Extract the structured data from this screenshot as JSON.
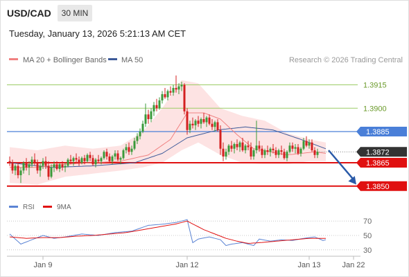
{
  "header": {
    "symbol": "USD/CAD",
    "timeframe": "30 MIN",
    "datetime": "Tuesday, January 13, 2026 5:21:13 AM CET"
  },
  "legend": {
    "ma20_label": "MA 20 + Bollinger Bands",
    "ma50_label": "MA 50",
    "credit": "Research © 2026 Trading Central"
  },
  "rsi_legend": {
    "rsi_label": "RSI",
    "ma9_label": "9MA"
  },
  "colors": {
    "bull": "#3a9a3a",
    "bear": "#d42020",
    "ma20": "#f08080",
    "ma50": "#3c5a99",
    "bands_fill": "#fde0e0",
    "resistance": "#9ccc65",
    "pivot": "#4a7fd8",
    "support": "#e01010",
    "last": "#333333",
    "arrow": "#2a5aa8",
    "rsi": "#5b84d4"
  },
  "chart_data": [
    {
      "type": "candlestick",
      "title": "USD/CAD",
      "timeframe": "30 MIN",
      "ylim": [
        1.3845,
        1.3925
      ],
      "x_ticks": [
        {
          "label": "Jan 9",
          "index": 12
        },
        {
          "label": "Jan 12",
          "index": 64
        },
        {
          "label": "Jan 13",
          "index": 108
        },
        {
          "label": "Jan 22",
          "index": 124
        }
      ],
      "levels": [
        {
          "label": "1.3915",
          "value": 1.3915,
          "kind": "resistance"
        },
        {
          "label": "1.3900",
          "value": 1.39,
          "kind": "resistance"
        },
        {
          "label": "1.3885",
          "value": 1.3885,
          "kind": "pivot"
        },
        {
          "label": "1.3872",
          "value": 1.3872,
          "kind": "last"
        },
        {
          "label": "1.3865",
          "value": 1.3865,
          "kind": "support"
        },
        {
          "label": "1.3850",
          "value": 1.385,
          "kind": "support"
        }
      ],
      "forecast_arrow": {
        "from_index": 115,
        "from": 1.3873,
        "to_index": 125,
        "to": 1.3851
      },
      "ma20_anchors": [
        [
          0,
          1.3862
        ],
        [
          10,
          1.3862
        ],
        [
          20,
          1.3864
        ],
        [
          30,
          1.3865
        ],
        [
          40,
          1.3866
        ],
        [
          50,
          1.387
        ],
        [
          58,
          1.388
        ],
        [
          64,
          1.3897
        ],
        [
          70,
          1.3897
        ],
        [
          76,
          1.3893
        ],
        [
          82,
          1.3883
        ],
        [
          88,
          1.3874
        ],
        [
          100,
          1.387
        ],
        [
          110,
          1.3872
        ],
        [
          114,
          1.3871
        ]
      ],
      "ma50_anchors": [
        [
          0,
          1.3865
        ],
        [
          15,
          1.3862
        ],
        [
          30,
          1.3863
        ],
        [
          45,
          1.3865
        ],
        [
          55,
          1.3871
        ],
        [
          64,
          1.3881
        ],
        [
          75,
          1.3886
        ],
        [
          85,
          1.3888
        ],
        [
          95,
          1.3886
        ],
        [
          105,
          1.388
        ],
        [
          114,
          1.3874
        ]
      ],
      "bb_upper_anchors": [
        [
          0,
          1.3875
        ],
        [
          10,
          1.3873
        ],
        [
          20,
          1.3876
        ],
        [
          30,
          1.3874
        ],
        [
          40,
          1.3876
        ],
        [
          48,
          1.3885
        ],
        [
          55,
          1.39
        ],
        [
          62,
          1.3918
        ],
        [
          68,
          1.3916
        ],
        [
          76,
          1.39
        ],
        [
          84,
          1.3895
        ],
        [
          92,
          1.3892
        ],
        [
          100,
          1.3884
        ],
        [
          108,
          1.388
        ],
        [
          114,
          1.3878
        ]
      ],
      "bb_lower_anchors": [
        [
          0,
          1.3852
        ],
        [
          10,
          1.3851
        ],
        [
          20,
          1.3856
        ],
        [
          30,
          1.3858
        ],
        [
          40,
          1.386
        ],
        [
          48,
          1.3862
        ],
        [
          55,
          1.3865
        ],
        [
          62,
          1.3873
        ],
        [
          68,
          1.3878
        ],
        [
          76,
          1.387
        ],
        [
          84,
          1.3865
        ],
        [
          92,
          1.3864
        ],
        [
          100,
          1.3864
        ],
        [
          108,
          1.3866
        ],
        [
          114,
          1.3866
        ]
      ],
      "candles": [
        [
          1.3866,
          1.3869,
          1.3863,
          1.3865
        ],
        [
          1.3865,
          1.3867,
          1.3858,
          1.386
        ],
        [
          1.386,
          1.3864,
          1.3857,
          1.3863
        ],
        [
          1.3863,
          1.3865,
          1.3855,
          1.3857
        ],
        [
          1.3857,
          1.3862,
          1.3852,
          1.386
        ],
        [
          1.386,
          1.3866,
          1.3858,
          1.3865
        ],
        [
          1.3865,
          1.3868,
          1.386,
          1.3862
        ],
        [
          1.3862,
          1.3866,
          1.3857,
          1.3864
        ],
        [
          1.3864,
          1.3869,
          1.3862,
          1.3867
        ],
        [
          1.3867,
          1.3871,
          1.3863,
          1.3865
        ],
        [
          1.3865,
          1.3867,
          1.3858,
          1.386
        ],
        [
          1.386,
          1.3865,
          1.3856,
          1.3863
        ],
        [
          1.3863,
          1.3868,
          1.3861,
          1.3866
        ],
        [
          1.3866,
          1.3869,
          1.3861,
          1.3863
        ],
        [
          1.3863,
          1.3866,
          1.3854,
          1.3856
        ],
        [
          1.3856,
          1.3864,
          1.3855,
          1.3862
        ],
        [
          1.3862,
          1.3866,
          1.3859,
          1.3864
        ],
        [
          1.3864,
          1.3866,
          1.386,
          1.3861
        ],
        [
          1.3861,
          1.3865,
          1.3859,
          1.3864
        ],
        [
          1.3864,
          1.3866,
          1.386,
          1.3862
        ],
        [
          1.3862,
          1.3865,
          1.3859,
          1.3863
        ],
        [
          1.3863,
          1.3868,
          1.3862,
          1.3867
        ],
        [
          1.3867,
          1.387,
          1.3864,
          1.3866
        ],
        [
          1.3866,
          1.3869,
          1.3863,
          1.3868
        ],
        [
          1.3868,
          1.3871,
          1.3865,
          1.3867
        ],
        [
          1.3867,
          1.3869,
          1.3863,
          1.3865
        ],
        [
          1.3865,
          1.3869,
          1.3864,
          1.3868
        ],
        [
          1.3868,
          1.387,
          1.3864,
          1.3866
        ],
        [
          1.3866,
          1.3871,
          1.3865,
          1.387
        ],
        [
          1.387,
          1.3872,
          1.3866,
          1.3868
        ],
        [
          1.3868,
          1.387,
          1.3863,
          1.3864
        ],
        [
          1.3864,
          1.3868,
          1.3862,
          1.3867
        ],
        [
          1.3867,
          1.387,
          1.3865,
          1.3866
        ],
        [
          1.3866,
          1.3869,
          1.3864,
          1.3868
        ],
        [
          1.3868,
          1.3873,
          1.3867,
          1.3872
        ],
        [
          1.3872,
          1.3874,
          1.3867,
          1.3869
        ],
        [
          1.3869,
          1.3871,
          1.3865,
          1.3866
        ],
        [
          1.3866,
          1.387,
          1.3864,
          1.3869
        ],
        [
          1.3869,
          1.3873,
          1.3867,
          1.3871
        ],
        [
          1.3871,
          1.3873,
          1.3866,
          1.3867
        ],
        [
          1.3867,
          1.3869,
          1.3864,
          1.3868
        ],
        [
          1.3868,
          1.3874,
          1.3867,
          1.3873
        ],
        [
          1.3873,
          1.3877,
          1.3871,
          1.3875
        ],
        [
          1.3875,
          1.3878,
          1.387,
          1.3872
        ],
        [
          1.3872,
          1.3876,
          1.387,
          1.3874
        ],
        [
          1.3874,
          1.3881,
          1.3873,
          1.3879
        ],
        [
          1.3879,
          1.3884,
          1.3877,
          1.3882
        ],
        [
          1.3882,
          1.3887,
          1.388,
          1.3885
        ],
        [
          1.3885,
          1.3892,
          1.3884,
          1.389
        ],
        [
          1.389,
          1.3903,
          1.3888,
          1.3896
        ],
        [
          1.3896,
          1.3899,
          1.389,
          1.3893
        ],
        [
          1.3893,
          1.39,
          1.3891,
          1.3898
        ],
        [
          1.3898,
          1.3904,
          1.3895,
          1.3902
        ],
        [
          1.3902,
          1.3906,
          1.3898,
          1.39
        ],
        [
          1.39,
          1.3907,
          1.3899,
          1.3905
        ],
        [
          1.3905,
          1.3911,
          1.3903,
          1.3909
        ],
        [
          1.3909,
          1.3913,
          1.3906,
          1.3907
        ],
        [
          1.3907,
          1.3912,
          1.3905,
          1.3911
        ],
        [
          1.3911,
          1.3914,
          1.3908,
          1.391
        ],
        [
          1.391,
          1.3915,
          1.3908,
          1.3913
        ],
        [
          1.3913,
          1.3921,
          1.391,
          1.3912
        ],
        [
          1.3912,
          1.3916,
          1.3909,
          1.3914
        ],
        [
          1.3914,
          1.3917,
          1.3911,
          1.3915
        ],
        [
          1.3915,
          1.3916,
          1.3896,
          1.3898
        ],
        [
          1.3898,
          1.39,
          1.3883,
          1.3886
        ],
        [
          1.3886,
          1.3892,
          1.3884,
          1.389
        ],
        [
          1.389,
          1.3894,
          1.3887,
          1.3889
        ],
        [
          1.3889,
          1.3893,
          1.3886,
          1.3892
        ],
        [
          1.3892,
          1.3895,
          1.3888,
          1.389
        ],
        [
          1.389,
          1.3894,
          1.3887,
          1.3893
        ],
        [
          1.3893,
          1.3897,
          1.389,
          1.3891
        ],
        [
          1.3891,
          1.3895,
          1.3888,
          1.3894
        ],
        [
          1.3894,
          1.3896,
          1.3889,
          1.389
        ],
        [
          1.389,
          1.3893,
          1.3886,
          1.3888
        ],
        [
          1.3888,
          1.3892,
          1.3885,
          1.3891
        ],
        [
          1.3891,
          1.3893,
          1.3885,
          1.3886
        ],
        [
          1.3886,
          1.3889,
          1.387,
          1.3874
        ],
        [
          1.3874,
          1.3878,
          1.3866,
          1.3869
        ],
        [
          1.3869,
          1.3874,
          1.3867,
          1.3872
        ],
        [
          1.3872,
          1.3877,
          1.387,
          1.3876
        ],
        [
          1.3876,
          1.3879,
          1.3872,
          1.3874
        ],
        [
          1.3874,
          1.3878,
          1.3871,
          1.3877
        ],
        [
          1.3877,
          1.388,
          1.3873,
          1.3875
        ],
        [
          1.3875,
          1.3879,
          1.3872,
          1.3878
        ],
        [
          1.3878,
          1.3881,
          1.3872,
          1.3873
        ],
        [
          1.3873,
          1.3877,
          1.3871,
          1.3876
        ],
        [
          1.3876,
          1.3879,
          1.3873,
          1.3875
        ],
        [
          1.3875,
          1.3878,
          1.3867,
          1.3869
        ],
        [
          1.3869,
          1.3874,
          1.3867,
          1.3873
        ],
        [
          1.3873,
          1.3892,
          1.3871,
          1.3876
        ],
        [
          1.3876,
          1.3879,
          1.3872,
          1.3874
        ],
        [
          1.3874,
          1.3876,
          1.3868,
          1.387
        ],
        [
          1.387,
          1.3874,
          1.3868,
          1.3873
        ],
        [
          1.3873,
          1.3876,
          1.387,
          1.3872
        ],
        [
          1.3872,
          1.3875,
          1.3869,
          1.3874
        ],
        [
          1.3874,
          1.3877,
          1.3871,
          1.3873
        ],
        [
          1.3873,
          1.3875,
          1.3868,
          1.387
        ],
        [
          1.387,
          1.3874,
          1.3868,
          1.3873
        ],
        [
          1.3873,
          1.3876,
          1.387,
          1.3872
        ],
        [
          1.3872,
          1.3874,
          1.3867,
          1.3868
        ],
        [
          1.3868,
          1.3873,
          1.3866,
          1.3872
        ],
        [
          1.3872,
          1.3878,
          1.3871,
          1.3876
        ],
        [
          1.3876,
          1.3878,
          1.3872,
          1.3874
        ],
        [
          1.3874,
          1.3877,
          1.3871,
          1.3875
        ],
        [
          1.3875,
          1.3877,
          1.387,
          1.3871
        ],
        [
          1.3871,
          1.3875,
          1.3869,
          1.3874
        ],
        [
          1.3874,
          1.3881,
          1.3873,
          1.3879
        ],
        [
          1.3879,
          1.3882,
          1.3875,
          1.3876
        ],
        [
          1.3876,
          1.388,
          1.3874,
          1.3878
        ],
        [
          1.3878,
          1.388,
          1.3872,
          1.3873
        ],
        [
          1.3873,
          1.3875,
          1.3868,
          1.387
        ],
        [
          1.387,
          1.3874,
          1.3868,
          1.3872
        ]
      ]
    },
    {
      "type": "line",
      "title": "RSI",
      "ylim": [
        25,
        75
      ],
      "y_ticks": [
        70,
        50,
        30
      ],
      "series": [
        {
          "name": "RSI",
          "anchors": [
            [
              0,
              52
            ],
            [
              4,
              38
            ],
            [
              8,
              44
            ],
            [
              12,
              50
            ],
            [
              16,
              46
            ],
            [
              20,
              48
            ],
            [
              26,
              52
            ],
            [
              32,
              50
            ],
            [
              38,
              54
            ],
            [
              44,
              56
            ],
            [
              50,
              64
            ],
            [
              56,
              66
            ],
            [
              60,
              68
            ],
            [
              64,
              72
            ],
            [
              66,
              40
            ],
            [
              68,
              45
            ],
            [
              72,
              48
            ],
            [
              76,
              44
            ],
            [
              78,
              36
            ],
            [
              80,
              38
            ],
            [
              84,
              40
            ],
            [
              88,
              36
            ],
            [
              90,
              45
            ],
            [
              94,
              42
            ],
            [
              98,
              44
            ],
            [
              102,
              43
            ],
            [
              106,
              46
            ],
            [
              110,
              48
            ],
            [
              113,
              43
            ],
            [
              114,
              44
            ]
          ]
        },
        {
          "name": "9MA",
          "anchors": [
            [
              0,
              48
            ],
            [
              6,
              46
            ],
            [
              12,
              47
            ],
            [
              18,
              47
            ],
            [
              24,
              49
            ],
            [
              30,
              50
            ],
            [
              36,
              52
            ],
            [
              42,
              54
            ],
            [
              48,
              58
            ],
            [
              54,
              62
            ],
            [
              60,
              66
            ],
            [
              64,
              70
            ],
            [
              66,
              66
            ],
            [
              70,
              58
            ],
            [
              74,
              52
            ],
            [
              78,
              46
            ],
            [
              82,
              42
            ],
            [
              86,
              39
            ],
            [
              90,
              40
            ],
            [
              96,
              42
            ],
            [
              102,
              44
            ],
            [
              108,
              46
            ],
            [
              114,
              46
            ]
          ]
        }
      ]
    }
  ]
}
